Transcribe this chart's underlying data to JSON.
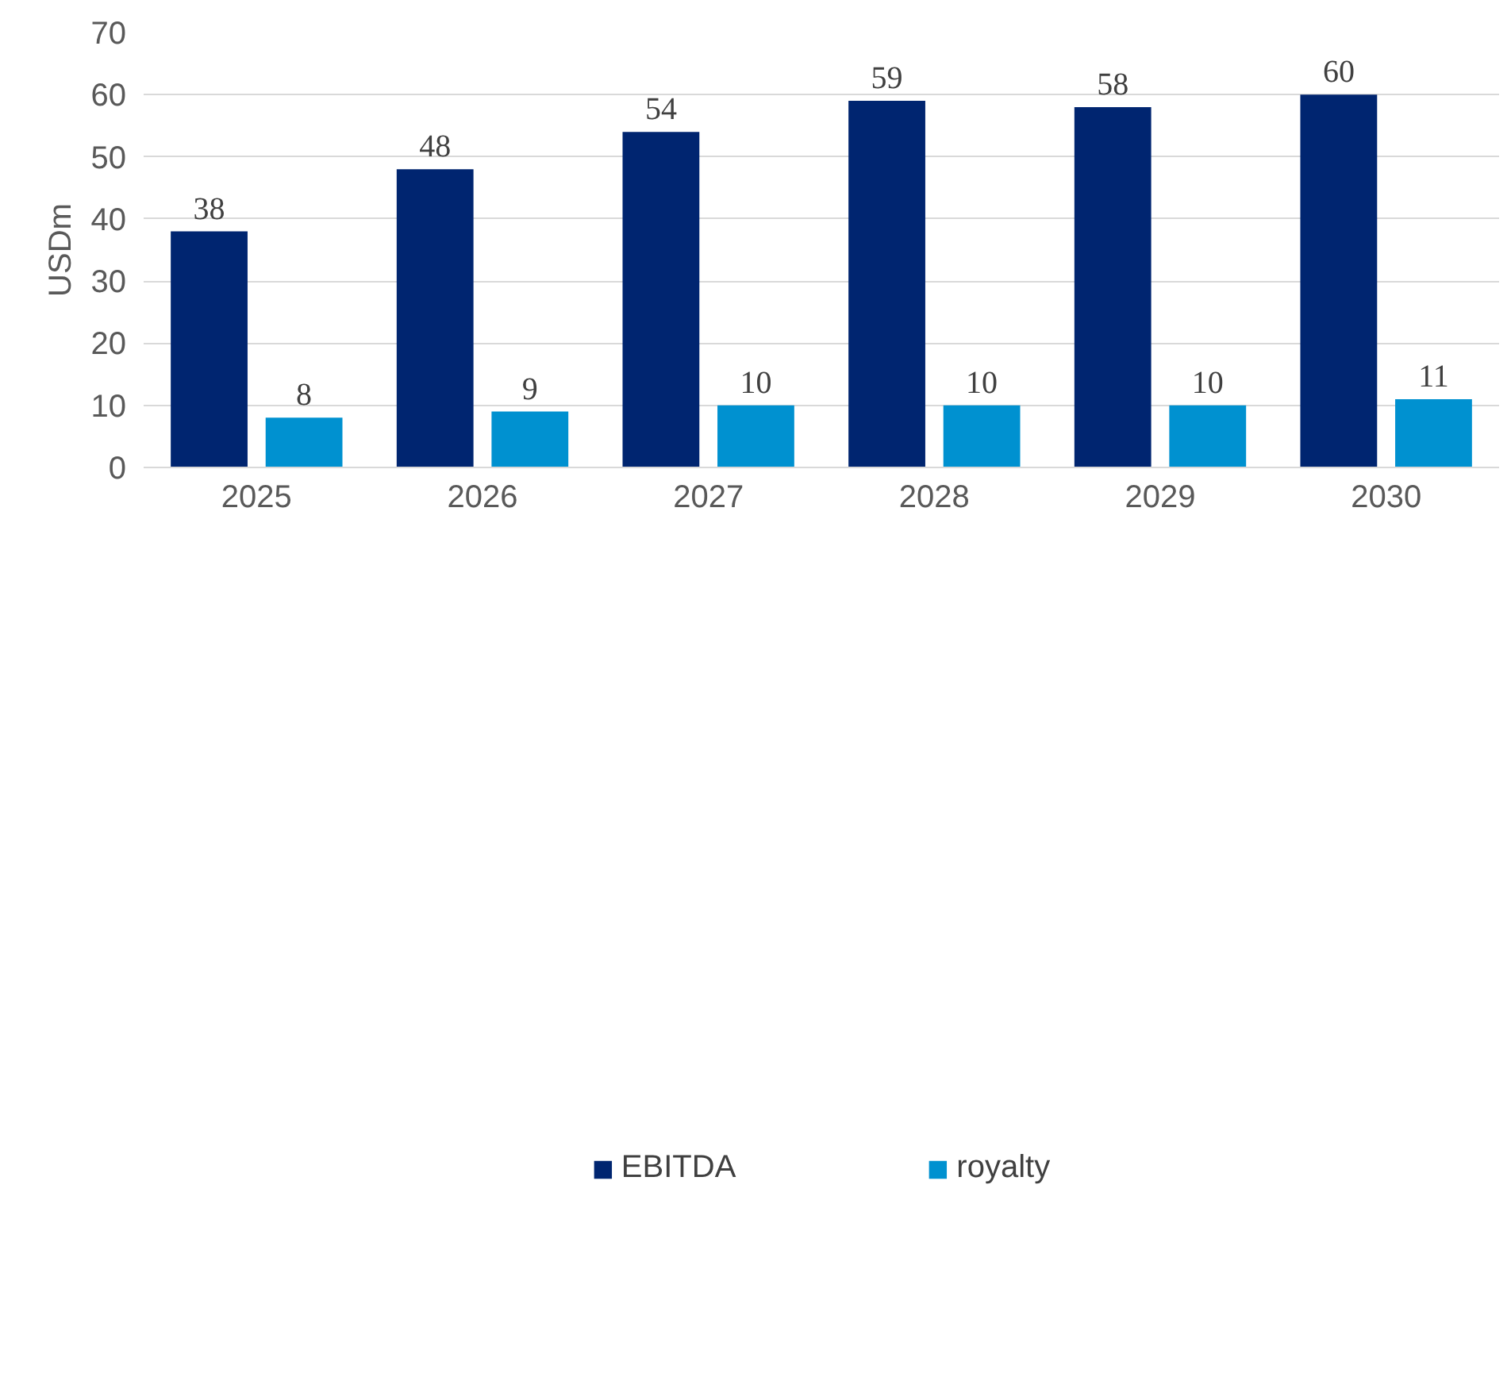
{
  "chart_data": {
    "type": "bar",
    "ylabel": "USDm",
    "categories": [
      "2025",
      "2026",
      "2027",
      "2028",
      "2029",
      "2030"
    ],
    "series": [
      {
        "name": "EBITDA",
        "color": "#002570",
        "values": [
          38,
          48,
          54,
          59,
          58,
          60
        ]
      },
      {
        "name": "royalty",
        "color": "#0091d0",
        "values": [
          8,
          9,
          10,
          10,
          10,
          11
        ]
      }
    ],
    "ylim": [
      0,
      70
    ],
    "yticks": [
      0,
      10,
      20,
      30,
      40,
      50,
      60,
      70
    ],
    "grid": "y",
    "legend": "bottom",
    "data_labels": true
  }
}
